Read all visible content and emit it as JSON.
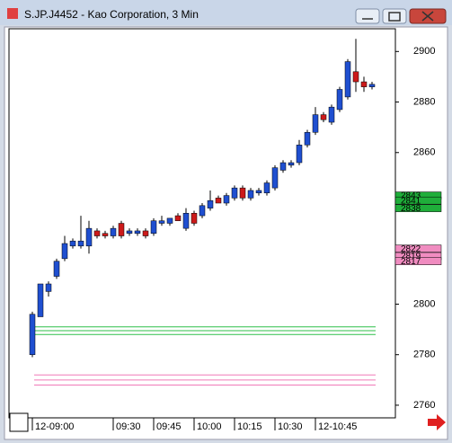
{
  "window_title": "S.JP.J4452 - Kao Corporation, 3 Min",
  "chart_data": {
    "type": "candlestick",
    "categories": [
      "09:00",
      "09:03",
      "09:06",
      "09:09",
      "09:12",
      "09:15",
      "09:18",
      "09:21",
      "09:24",
      "09:27",
      "09:30",
      "09:33",
      "09:36",
      "09:39",
      "09:42",
      "09:45",
      "09:48",
      "09:51",
      "09:54",
      "09:57",
      "10:00",
      "10:03",
      "10:06",
      "10:09",
      "10:12",
      "10:15",
      "10:18",
      "10:21",
      "10:24",
      "10:27",
      "10:30",
      "10:33",
      "10:36",
      "10:39",
      "10:42",
      "10:45",
      "10:48",
      "10:51",
      "10:54",
      "10:57",
      "11:00",
      "11:03",
      "11:06"
    ],
    "open": [
      2780,
      2795,
      2805,
      2811,
      2818,
      2823,
      2823,
      2823,
      2829,
      2828,
      2827,
      2832,
      2828,
      2828,
      2829,
      2828,
      2832,
      2832,
      2835,
      2830,
      2836,
      2835,
      2838,
      2842,
      2840,
      2842,
      2846,
      2842,
      2844,
      2844,
      2846,
      2853,
      2855,
      2856,
      2863,
      2868,
      2875,
      2872,
      2877,
      2882,
      2892,
      2888,
      2886
    ],
    "high": [
      2797,
      2808,
      2809,
      2818,
      2827,
      2826,
      2835,
      2833,
      2830,
      2829,
      2831,
      2833,
      2830,
      2830,
      2830,
      2834,
      2835,
      2834,
      2836,
      2838,
      2837,
      2840,
      2845,
      2843,
      2844,
      2847,
      2847,
      2846,
      2846,
      2849,
      2855,
      2857,
      2857,
      2865,
      2869,
      2878,
      2876,
      2879,
      2886,
      2897,
      2905,
      2890,
      2888
    ],
    "low": [
      2779,
      2795,
      2803,
      2810,
      2817,
      2822,
      2822,
      2820,
      2826,
      2826,
      2826,
      2826,
      2827,
      2827,
      2826,
      2827,
      2831,
      2831,
      2833,
      2829,
      2831,
      2834,
      2837,
      2840,
      2839,
      2841,
      2841,
      2841,
      2843,
      2843,
      2845,
      2852,
      2854,
      2855,
      2862,
      2867,
      2872,
      2871,
      2876,
      2881,
      2884,
      2884,
      2885
    ],
    "close": [
      2796,
      2808,
      2808,
      2817,
      2824,
      2825,
      2825,
      2830,
      2827,
      2827,
      2830,
      2827,
      2829,
      2829,
      2827,
      2833,
      2833,
      2834,
      2833,
      2836,
      2832,
      2839,
      2841,
      2840,
      2843,
      2846,
      2842,
      2845,
      2845,
      2848,
      2854,
      2856,
      2856,
      2863,
      2868,
      2875,
      2873,
      2878,
      2885,
      2896,
      2888,
      2886,
      2887
    ],
    "up_color": "#1f4fd0",
    "down_color": "#cc1a1a",
    "ylim": [
      2755,
      2909
    ],
    "yticks": [
      2760,
      2780,
      2800,
      2860,
      2880,
      2900
    ],
    "xticks": [
      {
        "value": "09:00",
        "label": "12-09:00"
      },
      {
        "value": "09:30",
        "label": "09:30"
      },
      {
        "value": "09:45",
        "label": "09:45"
      },
      {
        "value": "10:00",
        "label": "10:00"
      },
      {
        "value": "10:15",
        "label": "10:15"
      },
      {
        "value": "10:30",
        "label": "10:30"
      },
      {
        "value": "10:45",
        "label": "12-10:45"
      }
    ],
    "price_markers": [
      {
        "value": 2843,
        "color": "#1fae3a"
      },
      {
        "value": 2841,
        "color": "#1fae3a"
      },
      {
        "value": 2838,
        "color": "#1fae3a"
      },
      {
        "value": 2822,
        "color": "#f08cc0"
      },
      {
        "value": 2819,
        "color": "#f08cc0"
      },
      {
        "value": 2817,
        "color": "#f08cc0"
      }
    ],
    "reference_lines": [
      {
        "value": 2791,
        "color": "#2fbf4a"
      },
      {
        "value": 2789.5,
        "color": "#2fbf4a"
      },
      {
        "value": 2788,
        "color": "#2fbf4a"
      },
      {
        "value": 2772,
        "color": "#f07ab8"
      },
      {
        "value": 2770,
        "color": "#f07ab8"
      },
      {
        "value": 2768,
        "color": "#f07ab8"
      }
    ]
  }
}
